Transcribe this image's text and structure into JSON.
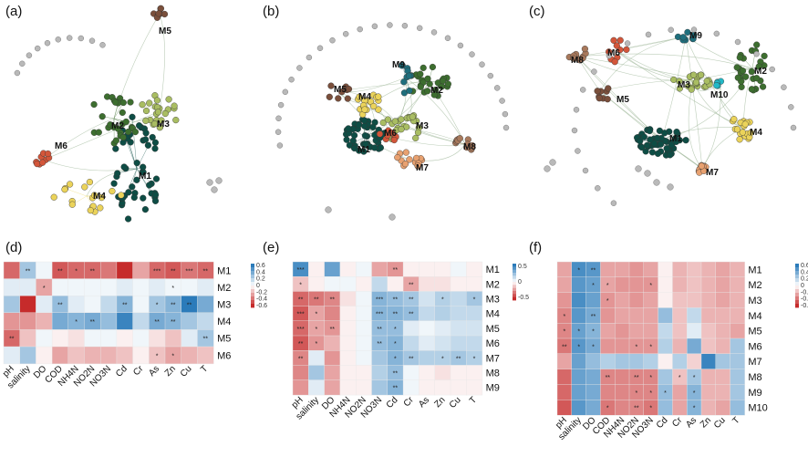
{
  "colors": {
    "M1": "#0e4d45",
    "M2": "#3d6e2f",
    "M3": "#a9bd62",
    "M4": "#ebd35a",
    "M5": "#7a4f3b",
    "M6": "#d3563a",
    "M7": "#e8a170",
    "M8": "#a8795c",
    "M9": "#1f6f7d",
    "M10": "#22b9c7",
    "grey": "#b9b9b9",
    "heat_pos": "#2b7bba",
    "heat_neg": "#c62b2b"
  },
  "networks": [
    {
      "letter": "(a)",
      "modules": [
        "M5",
        "M2",
        "M3",
        "M6",
        "M1",
        "M4"
      ]
    },
    {
      "letter": "(b)",
      "modules": [
        "M9",
        "M2",
        "M5",
        "M4",
        "M3",
        "M6",
        "M1",
        "M8",
        "M7"
      ]
    },
    {
      "letter": "(c)",
      "modules": [
        "M9",
        "M8",
        "M6",
        "M2",
        "M3",
        "M10",
        "M5",
        "M4",
        "M1",
        "M7"
      ]
    }
  ],
  "heatmaps": [
    {
      "letter": "(d)",
      "rows": [
        "M1",
        "M2",
        "M3",
        "M4",
        "M5",
        "M6"
      ],
      "cols": [
        "pH",
        "salinity",
        "DO",
        "COD",
        "NH4N",
        "NO2N",
        "NO3N",
        "Cd",
        "Cr",
        "As",
        "Zn",
        "Cu",
        "T"
      ],
      "legend": [
        "0.6",
        "0.4",
        "0.2",
        "0",
        "-0.2",
        "-0.4",
        "-0.6"
      ],
      "values": [
        [
          -0.5,
          0.3,
          0.05,
          -0.55,
          -0.5,
          -0.5,
          -0.45,
          -0.7,
          -0.3,
          -0.5,
          -0.55,
          -0.45,
          -0.5
        ],
        [
          0.1,
          0.1,
          -0.3,
          0.05,
          0.05,
          0.05,
          0.05,
          0.1,
          0.05,
          0.1,
          0.05,
          0.05,
          0.1
        ],
        [
          0.3,
          -0.7,
          0.1,
          0.35,
          0.1,
          0.05,
          0.2,
          0.4,
          0.05,
          0.3,
          0.4,
          0.7,
          0.45
        ],
        [
          -0.35,
          -0.35,
          -0.25,
          0.45,
          0.4,
          0.45,
          0.35,
          0.65,
          0.2,
          0.45,
          0.4,
          0.3,
          0.2
        ],
        [
          -0.5,
          -0.2,
          0.05,
          -0.05,
          -0.1,
          0.05,
          0.05,
          -0.05,
          0.05,
          -0.1,
          -0.2,
          0.1,
          0.3
        ],
        [
          0.1,
          0.3,
          -0.05,
          -0.3,
          -0.2,
          -0.25,
          -0.25,
          -0.2,
          -0.05,
          -0.2,
          -0.3,
          -0.25,
          -0.2
        ]
      ],
      "stars": [
        [
          "",
          "**",
          "",
          "**",
          "*",
          "**",
          "",
          "",
          "",
          "***",
          "**",
          "***",
          "**"
        ],
        [
          "",
          "",
          "*",
          "",
          "",
          "",
          "",
          "",
          "",
          "",
          "*",
          "",
          ""
        ],
        [
          "",
          "",
          "",
          "**",
          "",
          "",
          "",
          "**",
          "",
          "*",
          "**",
          "**",
          ""
        ],
        [
          "",
          "",
          "",
          "",
          "*",
          "**",
          "",
          "",
          "",
          "**",
          "**",
          "",
          ""
        ],
        [
          "**",
          "",
          "",
          "",
          "",
          "",
          "",
          "",
          "",
          "",
          "",
          "",
          "**"
        ],
        [
          "",
          "",
          "",
          "",
          "",
          "",
          "",
          "",
          "",
          "*",
          "*",
          "",
          ""
        ]
      ]
    },
    {
      "letter": "(e)",
      "rows": [
        "M1",
        "M2",
        "M3",
        "M4",
        "M5",
        "M6",
        "M7",
        "M8",
        "M9"
      ],
      "cols": [
        "pH",
        "salinity",
        "DO",
        "NH4N",
        "NO2N",
        "NO3N",
        "Cd",
        "Cr",
        "As",
        "Zn",
        "Cu",
        "T"
      ],
      "legend": [
        "0.5",
        "0",
        "-0.5"
      ],
      "values": [
        [
          0.6,
          -0.05,
          0.5,
          -0.05,
          0.05,
          -0.3,
          -0.35,
          -0.05,
          -0.05,
          -0.05,
          0.05,
          -0.05
        ],
        [
          -0.2,
          -0.05,
          0.05,
          0.05,
          -0.05,
          0.2,
          -0.05,
          -0.3,
          -0.1,
          -0.1,
          -0.05,
          -0.05
        ],
        [
          -0.5,
          -0.45,
          -0.4,
          -0.1,
          0.05,
          0.4,
          0.35,
          0.3,
          0.15,
          0.25,
          0.2,
          0.3
        ],
        [
          -0.55,
          -0.3,
          -0.4,
          -0.05,
          0.05,
          0.4,
          0.4,
          0.35,
          0.2,
          0.25,
          0.2,
          0.2
        ],
        [
          -0.5,
          -0.3,
          -0.35,
          -0.05,
          0.05,
          0.35,
          0.35,
          0.1,
          0.05,
          0.1,
          0.15,
          0.15
        ],
        [
          -0.55,
          -0.35,
          -0.25,
          -0.05,
          0.05,
          0.35,
          0.4,
          0.2,
          0.1,
          0.15,
          0.2,
          0.2
        ],
        [
          -0.4,
          0.1,
          -0.35,
          -0.05,
          0.05,
          0.3,
          0.4,
          0.3,
          0.25,
          0.25,
          0.3,
          0.25
        ],
        [
          -0.4,
          0.3,
          -0.3,
          -0.05,
          -0.05,
          0.25,
          0.35,
          0.05,
          -0.05,
          -0.1,
          -0.05,
          -0.05
        ],
        [
          -0.35,
          0.1,
          -0.3,
          -0.05,
          -0.05,
          0.3,
          0.4,
          0.05,
          -0.05,
          -0.05,
          -0.05,
          -0.05
        ]
      ],
      "stars": [
        [
          "***",
          "",
          "",
          "",
          "",
          "",
          "**",
          "",
          "",
          "",
          "",
          ""
        ],
        [
          "*",
          "",
          "",
          "",
          "",
          "",
          "",
          "**",
          "",
          "",
          "",
          ""
        ],
        [
          "**",
          "**",
          "**",
          "",
          "",
          "***",
          "**",
          "**",
          "",
          "*",
          "",
          "*"
        ],
        [
          "***",
          "*",
          "",
          "",
          "",
          "***",
          "**",
          "**",
          "",
          "",
          "",
          ""
        ],
        [
          "***",
          "*",
          "**",
          "",
          "",
          "**",
          "*",
          "",
          "",
          "",
          "",
          ""
        ],
        [
          "**",
          "*",
          "",
          "",
          "",
          "**",
          "*",
          "",
          "",
          "",
          "",
          ""
        ],
        [
          "**",
          "",
          "",
          "",
          "",
          "",
          "*",
          "**",
          "",
          "*",
          "**",
          "*"
        ],
        [
          "",
          "",
          "",
          "",
          "",
          "",
          "**",
          "",
          "",
          "",
          "",
          ""
        ],
        [
          "",
          "",
          "",
          "",
          "",
          "",
          "**",
          "",
          "",
          "",
          "",
          ""
        ]
      ]
    },
    {
      "letter": "(f)",
      "rows": [
        "M1",
        "M2",
        "M3",
        "M4",
        "M5",
        "M6",
        "M7",
        "M8",
        "M9",
        "M10"
      ],
      "cols": [
        "pH",
        "salinity",
        "DO",
        "COD",
        "NH4N",
        "NO2N",
        "NO3N",
        "Cd",
        "Cr",
        "As",
        "Zn",
        "Cu",
        "T"
      ],
      "legend": [
        "0.6",
        "0.4",
        "0.2",
        "0",
        "-0.2",
        "-0.4",
        "-0.6"
      ],
      "values": [
        [
          -0.3,
          0.6,
          0.55,
          -0.3,
          -0.3,
          -0.35,
          -0.3,
          -0.05,
          -0.25,
          -0.2,
          -0.25,
          -0.3,
          -0.25
        ],
        [
          -0.3,
          0.55,
          0.5,
          -0.3,
          -0.35,
          -0.35,
          -0.35,
          -0.05,
          -0.25,
          -0.2,
          -0.25,
          -0.3,
          -0.25
        ],
        [
          -0.35,
          0.6,
          0.5,
          -0.35,
          -0.3,
          -0.35,
          -0.3,
          -0.05,
          -0.2,
          -0.2,
          -0.25,
          -0.3,
          -0.25
        ],
        [
          -0.4,
          0.55,
          0.45,
          -0.35,
          -0.3,
          -0.3,
          -0.3,
          0.35,
          -0.2,
          0.2,
          -0.25,
          -0.25,
          -0.25
        ],
        [
          -0.4,
          0.5,
          0.4,
          -0.3,
          -0.35,
          -0.3,
          -0.3,
          0.2,
          -0.2,
          0.1,
          -0.2,
          -0.25,
          -0.3
        ],
        [
          -0.45,
          0.55,
          0.45,
          -0.35,
          -0.35,
          -0.35,
          -0.35,
          0.25,
          -0.25,
          0.45,
          -0.2,
          -0.25,
          0.3
        ],
        [
          -0.3,
          0.5,
          0.35,
          0.25,
          0.3,
          0.3,
          0.25,
          -0.05,
          0.25,
          -0.15,
          0.65,
          0.3,
          0.3
        ],
        [
          -0.5,
          0.5,
          0.45,
          -0.4,
          -0.4,
          -0.4,
          -0.4,
          0.3,
          -0.2,
          0.3,
          -0.25,
          -0.25,
          0.3
        ],
        [
          -0.5,
          0.5,
          0.45,
          -0.4,
          -0.4,
          -0.4,
          -0.4,
          0.35,
          -0.3,
          0.4,
          -0.25,
          -0.25,
          0.3
        ],
        [
          -0.55,
          0.55,
          0.45,
          -0.45,
          -0.4,
          -0.4,
          -0.45,
          0.35,
          -0.3,
          0.4,
          -0.25,
          -0.3,
          0.35
        ]
      ],
      "stars": [
        [
          "",
          "*",
          "**",
          "",
          "",
          "",
          "",
          "",
          "",
          "",
          "",
          "",
          ""
        ],
        [
          "",
          "",
          "*",
          "*",
          "",
          "",
          "*",
          "",
          "",
          "",
          "",
          "",
          ""
        ],
        [
          "",
          "",
          "",
          "*",
          "",
          "",
          "",
          "",
          "",
          "",
          "",
          "",
          ""
        ],
        [
          "*",
          "",
          "**",
          "",
          "",
          "",
          "",
          "",
          "",
          "",
          "",
          "",
          ""
        ],
        [
          "*",
          "*",
          "*",
          "",
          "",
          "",
          "",
          "",
          "",
          "",
          "",
          "",
          ""
        ],
        [
          "**",
          "*",
          "*",
          "",
          "",
          "*",
          "*",
          "",
          "",
          "",
          "",
          "",
          ""
        ],
        [
          "",
          "",
          "",
          "",
          "",
          "",
          "",
          "",
          "",
          "",
          "",
          "",
          ""
        ],
        [
          "",
          "",
          "",
          "**",
          "",
          "**",
          "*",
          "",
          "*",
          "*",
          "",
          "",
          ""
        ],
        [
          "",
          "",
          "",
          "",
          "",
          "*",
          "*",
          "*",
          "",
          "*",
          "",
          "",
          ""
        ],
        [
          "",
          "",
          "",
          "*",
          "",
          "**",
          "*",
          "",
          "",
          "*",
          "",
          "",
          ""
        ]
      ]
    }
  ]
}
